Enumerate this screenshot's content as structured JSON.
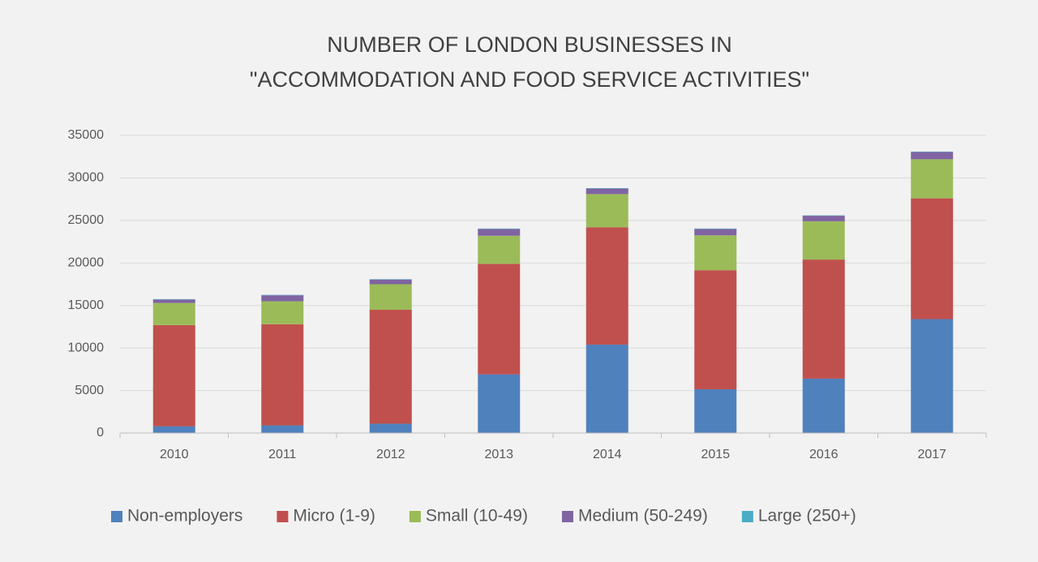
{
  "chart_data": {
    "type": "stacked_bar",
    "title": [
      "NUMBER OF LONDON BUSINESSES IN",
      "\"ACCOMMODATION AND FOOD SERVICE ACTIVITIES\""
    ],
    "categories": [
      "2010",
      "2011",
      "2012",
      "2013",
      "2014",
      "2015",
      "2016",
      "2017"
    ],
    "series": [
      {
        "name": "Non-employers",
        "color": "#4f81bd",
        "values": [
          800,
          900,
          1100,
          6900,
          10400,
          5150,
          6400,
          13400
        ]
      },
      {
        "name": "Micro (1-9)",
        "color": "#c0504d",
        "values": [
          11900,
          11900,
          13400,
          13000,
          13800,
          14000,
          14000,
          14200
        ]
      },
      {
        "name": "Small (10-49)",
        "color": "#9bbb59",
        "values": [
          2600,
          2700,
          3000,
          3300,
          3900,
          4100,
          4500,
          4600
        ]
      },
      {
        "name": "Medium (50-249)",
        "color": "#8064a2",
        "values": [
          400,
          700,
          550,
          800,
          650,
          750,
          650,
          850
        ]
      },
      {
        "name": "Large (250+)",
        "color": "#4bacc6",
        "values": [
          50,
          50,
          50,
          50,
          50,
          50,
          50,
          50
        ]
      }
    ],
    "ylim": [
      0,
      35000
    ],
    "yticks": [
      0,
      5000,
      10000,
      15000,
      20000,
      25000,
      30000,
      35000
    ],
    "grid": true,
    "legend": "bottom"
  }
}
